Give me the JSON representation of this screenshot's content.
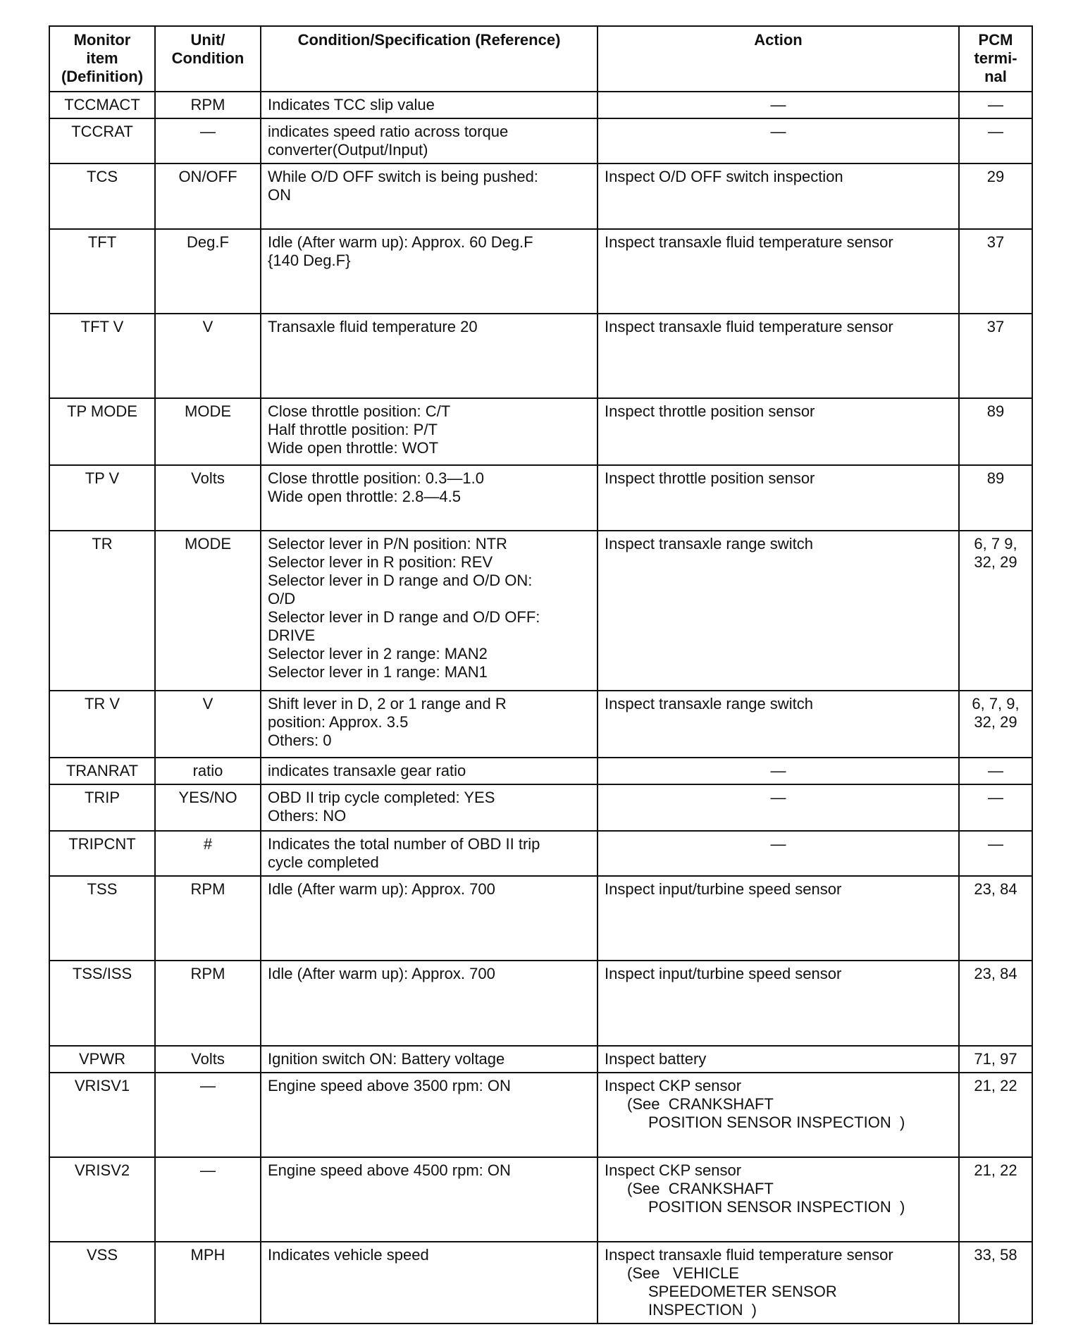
{
  "headers": [
    "Monitor item (Definition)",
    "Unit/ Condition",
    "Condition/Specification (Reference)",
    "Action",
    "PCM termi-nal"
  ],
  "header_lines": [
    [
      "Monitor",
      "item",
      "(Definition)"
    ],
    [
      "Unit/",
      "Condition"
    ],
    [
      "Condition/Specification (Reference)"
    ],
    [
      "Action"
    ],
    [
      "PCM",
      "termi-",
      "nal"
    ]
  ],
  "rows": [
    {
      "item": "TCCMACT",
      "unit": "RPM",
      "condition": [
        "Indicates TCC slip value"
      ],
      "action": [
        "—"
      ],
      "pcm": [
        "—"
      ]
    },
    {
      "item": "TCCRAT",
      "unit": "—",
      "condition": [
        "indicates speed ratio across torque",
        "converter(Output/Input)"
      ],
      "action": [
        "—"
      ],
      "pcm": [
        "—"
      ]
    },
    {
      "item": "TCS",
      "unit": "ON/OFF",
      "condition": [
        "While O/D OFF switch is being pushed:",
        "ON"
      ],
      "action": [
        "Inspect O/D OFF switch inspection"
      ],
      "pcm": [
        "29"
      ]
    },
    {
      "item": "TFT",
      "unit": "Deg.F",
      "condition": [
        "Idle (After warm up): Approx. 60 Deg.F",
        "{140 Deg.F}"
      ],
      "action": [
        "Inspect transaxle fluid temperature sensor"
      ],
      "pcm": [
        "37"
      ]
    },
    {
      "item": "TFT V",
      "unit": "V",
      "condition": [
        "Transaxle fluid temperature 20"
      ],
      "action": [
        "Inspect transaxle fluid temperature sensor"
      ],
      "pcm": [
        "37"
      ]
    },
    {
      "item": "TP MODE",
      "unit": "MODE",
      "condition": [
        "Close throttle position: C/T",
        "Half throttle position: P/T",
        "Wide open throttle: WOT"
      ],
      "action": [
        "Inspect throttle position sensor"
      ],
      "pcm": [
        "89"
      ]
    },
    {
      "item": "TP V",
      "unit": "Volts",
      "condition": [
        "Close throttle position: 0.3—1.0",
        "Wide open throttle: 2.8—4.5"
      ],
      "action": [
        "Inspect throttle position sensor"
      ],
      "pcm": [
        "89"
      ]
    },
    {
      "item": "TR",
      "unit": "MODE",
      "condition": [
        "Selector lever in P/N position: NTR",
        "Selector lever in R position: REV",
        "Selector lever in D range and O/D ON:",
        "O/D",
        "Selector lever in D range and O/D OFF:",
        "DRIVE",
        "Selector lever in 2 range: MAN2",
        "Selector lever in 1 range: MAN1"
      ],
      "action": [
        "Inspect transaxle range switch"
      ],
      "pcm": [
        "6, 7 9,",
        "32, 29"
      ]
    },
    {
      "item": "TR V",
      "unit": "V",
      "condition": [
        "Shift lever in D, 2 or 1 range and R",
        "position: Approx. 3.5",
        "Others: 0"
      ],
      "action": [
        "Inspect transaxle range switch"
      ],
      "pcm": [
        "6, 7, 9,",
        "32, 29"
      ]
    },
    {
      "item": "TRANRAT",
      "unit": "ratio",
      "condition": [
        "indicates transaxle gear ratio"
      ],
      "action": [
        "—"
      ],
      "pcm": [
        "—"
      ]
    },
    {
      "item": "TRIP",
      "unit": "YES/NO",
      "condition": [
        "OBD II trip cycle completed: YES",
        "Others: NO"
      ],
      "action": [
        "—"
      ],
      "pcm": [
        "—"
      ]
    },
    {
      "item": "TRIPCNT",
      "unit": "#",
      "condition": [
        "Indicates the total number of OBD II trip",
        "cycle completed"
      ],
      "action": [
        "—"
      ],
      "pcm": [
        "—"
      ]
    },
    {
      "item": "TSS",
      "unit": "RPM",
      "condition": [
        "Idle (After warm up): Approx. 700"
      ],
      "action": [
        "Inspect input/turbine speed sensor"
      ],
      "pcm": [
        "23, 84"
      ]
    },
    {
      "item": "TSS/ISS",
      "unit": "RPM",
      "condition": [
        "Idle (After warm up): Approx. 700"
      ],
      "action": [
        "Inspect input/turbine speed sensor"
      ],
      "pcm": [
        "23, 84"
      ]
    },
    {
      "item": "VPWR",
      "unit": "Volts",
      "condition": [
        "Ignition switch ON: Battery voltage"
      ],
      "action": [
        "Inspect battery"
      ],
      "pcm": [
        "71, 97"
      ]
    },
    {
      "item": "VRISV1",
      "unit": "—",
      "condition": [
        "Engine speed above 3500 rpm: ON"
      ],
      "action": [
        "Inspect CKP sensor",
        "(See  CRANKSHAFT",
        "POSITION SENSOR INSPECTION  )"
      ],
      "pcm": [
        "21, 22"
      ]
    },
    {
      "item": "VRISV2",
      "unit": "—",
      "condition": [
        "Engine speed above 4500 rpm: ON"
      ],
      "action": [
        "Inspect CKP sensor",
        "(See  CRANKSHAFT",
        "POSITION SENSOR INSPECTION  )"
      ],
      "pcm": [
        "21, 22"
      ]
    },
    {
      "item": "VSS",
      "unit": "MPH",
      "condition": [
        "Indicates vehicle speed"
      ],
      "action": [
        "Inspect transaxle fluid temperature sensor",
        "(See   VEHICLE",
        "SPEEDOMETER SENSOR",
        "INSPECTION  )"
      ],
      "pcm": [
        "33, 58"
      ]
    }
  ]
}
